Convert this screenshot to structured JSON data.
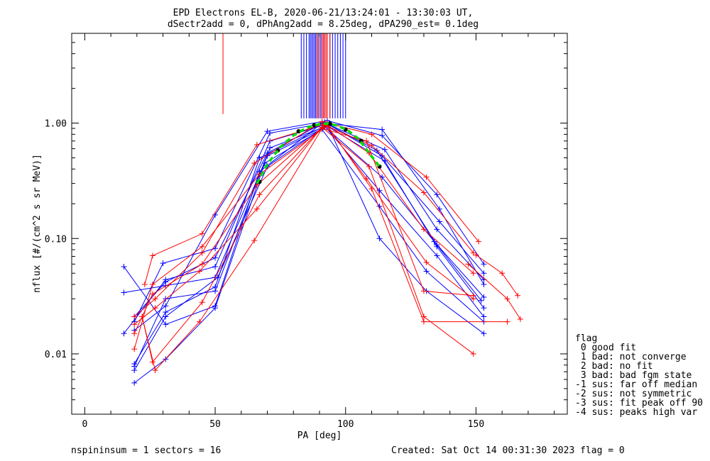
{
  "chart_data": {
    "type": "line",
    "title_lines": [
      "EPD Electrons EL-B, 2020-06-21/13:24:01 - 13:30:03 UT,",
      "dSectr2add = 0, dPhAng2add = 8.25deg, dPA290_est=   0.1deg"
    ],
    "xlabel": "PA [deg]",
    "ylabel": "nflux [#/(cm^2 s sr MeV)]",
    "xlim": [
      -5,
      185
    ],
    "ylim": [
      0.003,
      6.0
    ],
    "yscale": "log",
    "xticks": [
      0,
      50,
      100,
      150
    ],
    "xtick_labels": [
      "0",
      "50",
      "100",
      "150"
    ],
    "yticks": [
      0.01,
      0.1,
      1.0
    ],
    "ytick_labels": [
      "0.01",
      "0.10",
      "1.00"
    ],
    "series": [
      {
        "color": "#0000ff",
        "values": [
          [
            19,
            0.021
          ],
          [
            31,
            0.042
          ],
          [
            50,
            0.068
          ],
          [
            70,
            0.55
          ],
          [
            92,
            1.02
          ],
          [
            114,
            0.52
          ],
          [
            136,
            0.14
          ],
          [
            153,
            0.05
          ]
        ]
      },
      {
        "color": "#0000ff",
        "values": [
          [
            15,
            0.034
          ],
          [
            31,
            0.039
          ],
          [
            50,
            0.046
          ],
          [
            70,
            0.52
          ],
          [
            94,
            0.96
          ],
          [
            115,
            0.59
          ],
          [
            135,
            0.12
          ],
          [
            153,
            0.044
          ]
        ]
      },
      {
        "color": "#0000ff",
        "values": [
          [
            19,
            0.0078
          ],
          [
            31,
            0.03
          ],
          [
            50,
            0.035
          ],
          [
            71,
            0.61
          ],
          [
            92,
            0.93
          ],
          [
            114,
            0.34
          ],
          [
            134,
            0.094
          ],
          [
            153,
            0.031
          ]
        ]
      },
      {
        "color": "#0000ff",
        "values": [
          [
            15,
            0.057
          ],
          [
            31,
            0.018
          ],
          [
            50,
            0.026
          ],
          [
            67,
            0.38
          ],
          [
            91,
            1.0
          ],
          [
            115,
            0.47
          ],
          [
            135,
            0.085
          ],
          [
            153,
            0.025
          ]
        ]
      },
      {
        "color": "#0000ff",
        "values": [
          [
            19,
            0.016
          ],
          [
            31,
            0.026
          ],
          [
            50,
            0.16
          ],
          [
            70,
            0.85
          ],
          [
            93,
            1.05
          ],
          [
            114,
            0.78
          ],
          [
            135,
            0.24
          ],
          [
            153,
            0.06
          ]
        ]
      },
      {
        "color": "#0000ff",
        "values": [
          [
            19,
            0.0056
          ],
          [
            31,
            0.009
          ],
          [
            50,
            0.025
          ],
          [
            69,
            0.45
          ],
          [
            91,
            0.88
          ],
          [
            113,
            0.19
          ],
          [
            131,
            0.052
          ],
          [
            153,
            0.019
          ]
        ]
      },
      {
        "color": "#0000ff",
        "values": [
          [
            15,
            0.015
          ],
          [
            31,
            0.044
          ],
          [
            50,
            0.057
          ],
          [
            71,
            0.7
          ],
          [
            93,
            0.98
          ],
          [
            112,
            0.58
          ],
          [
            135,
            0.088
          ],
          [
            152,
            0.029
          ]
        ]
      },
      {
        "color": "#0000ff",
        "values": [
          [
            19,
            0.019
          ],
          [
            30,
            0.061
          ],
          [
            50,
            0.082
          ],
          [
            71,
            0.82
          ],
          [
            92,
            1.0
          ],
          [
            114,
            0.88
          ],
          [
            136,
            0.18
          ],
          [
            153,
            0.04
          ]
        ]
      },
      {
        "color": "#0000ff",
        "values": [
          [
            19,
            0.0072
          ],
          [
            31,
            0.021
          ],
          [
            51,
            0.046
          ],
          [
            70,
            0.42
          ],
          [
            93,
            0.97
          ],
          [
            113,
            0.1
          ],
          [
            131,
            0.035
          ],
          [
            153,
            0.015
          ]
        ]
      },
      {
        "color": "#0000ff",
        "values": [
          [
            19,
            0.0082
          ],
          [
            31,
            0.023
          ],
          [
            50,
            0.038
          ],
          [
            67,
            0.5
          ],
          [
            92,
            0.94
          ],
          [
            113,
            0.26
          ],
          [
            135,
            0.071
          ],
          [
            153,
            0.021
          ]
        ]
      },
      {
        "color": "#ff0000",
        "values": [
          [
            19,
            0.015
          ],
          [
            26,
            0.033
          ],
          [
            45,
            0.06
          ],
          [
            66,
            0.29
          ],
          [
            92,
            0.96
          ],
          [
            110,
            0.64
          ],
          [
            130,
            0.25
          ],
          [
            149,
            0.075
          ]
        ]
      },
      {
        "color": "#ff0000",
        "values": [
          [
            19,
            0.021
          ],
          [
            27,
            0.03
          ],
          [
            45,
            0.075
          ],
          [
            65,
            0.45
          ],
          [
            91,
            1.03
          ],
          [
            109,
            0.55
          ],
          [
            130,
            0.12
          ],
          [
            149,
            0.05
          ]
        ]
      },
      {
        "color": "#ff0000",
        "values": [
          [
            22,
            0.021
          ],
          [
            27,
            0.0072
          ],
          [
            44,
            0.019
          ],
          [
            65,
            0.096
          ],
          [
            91,
            0.9
          ],
          [
            108,
            0.7
          ],
          [
            130,
            0.035
          ],
          [
            149,
            0.032
          ]
        ]
      },
      {
        "color": "#ff0000",
        "values": [
          [
            23,
            0.04
          ],
          [
            26,
            0.071
          ],
          [
            45,
            0.11
          ],
          [
            66,
            0.65
          ],
          [
            93,
            1.0
          ],
          [
            110,
            0.8
          ],
          [
            131,
            0.34
          ],
          [
            151,
            0.094
          ]
        ]
      },
      {
        "color": "#ff0000",
        "values": [
          [
            22,
            0.021
          ],
          [
            26,
            0.0085
          ],
          [
            45,
            0.028
          ],
          [
            67,
            0.24
          ],
          [
            91,
            0.92
          ],
          [
            109,
            0.42
          ],
          [
            130,
            0.021
          ],
          [
            149,
            0.01
          ]
        ]
      },
      {
        "color": "#ff0000",
        "values": [
          [
            19,
            0.018
          ],
          [
            27,
            0.025
          ],
          [
            44,
            0.052
          ],
          [
            66,
            0.18
          ],
          [
            92,
            0.99
          ],
          [
            108,
            0.33
          ],
          [
            131,
            0.062
          ],
          [
            149,
            0.03
          ]
        ]
      },
      {
        "color": "#ff0000",
        "values": [
          [
            19,
            0.011
          ],
          [
            26,
            0.04
          ],
          [
            45,
            0.085
          ],
          [
            67,
            0.36
          ],
          [
            93,
            0.95
          ],
          [
            110,
            0.27
          ],
          [
            130,
            0.019
          ],
          [
            162,
            0.019
          ]
        ]
      },
      {
        "color": "#ff0000",
        "values": [
          [
            150,
            0.072
          ],
          [
            160,
            0.05
          ],
          [
            166,
            0.032
          ]
        ]
      },
      {
        "color": "#ff0000",
        "values": [
          [
            147,
            0.06
          ],
          [
            162,
            0.03
          ],
          [
            167,
            0.02
          ]
        ]
      }
    ],
    "spikes": [
      {
        "color": "#ff0000",
        "x": [
          53
        ]
      },
      {
        "color": "#0000ff",
        "x": [
          83,
          84,
          85,
          86,
          86.5,
          87,
          87.5,
          88,
          88.5,
          89,
          89.5,
          90,
          90.5,
          91,
          92,
          93,
          94,
          95,
          96,
          97,
          98,
          99,
          100
        ]
      },
      {
        "color": "#ff0000",
        "x": [
          89,
          90,
          91,
          91.5,
          92,
          92.5,
          93,
          94
        ]
      }
    ],
    "fit": {
      "style": "dashed",
      "color": "#00dd00",
      "points": [
        [
          66,
          0.3
        ],
        [
          70,
          0.44
        ],
        [
          75,
          0.62
        ],
        [
          80,
          0.78
        ],
        [
          85,
          0.91
        ],
        [
          90,
          0.98
        ],
        [
          93,
          0.99
        ],
        [
          97,
          0.95
        ],
        [
          101,
          0.86
        ],
        [
          105,
          0.73
        ],
        [
          109,
          0.55
        ],
        [
          113,
          0.42
        ]
      ]
    },
    "fit_markers": [
      [
        67,
        0.31
      ],
      [
        74,
        0.58
      ],
      [
        82,
        0.85
      ],
      [
        88,
        0.96
      ],
      [
        94,
        0.99
      ],
      [
        100,
        0.88
      ],
      [
        106,
        0.7
      ],
      [
        113,
        0.42
      ]
    ]
  },
  "footer": {
    "left": "nspininsum =  1  sectors = 16",
    "right": "Created: Sat Oct 14 00:31:30 2023   flag = 0"
  },
  "legend": {
    "title": "flag",
    "lines": [
      " 0 good fit",
      " 1 bad: not converge",
      " 2 bad: no fit",
      " 3 bad: bad fgm state",
      "-1 sus: far off median",
      "-2 sus: not symmetric",
      "-3 sus: fit peak off 90",
      "-4 sus: peaks high var"
    ]
  }
}
